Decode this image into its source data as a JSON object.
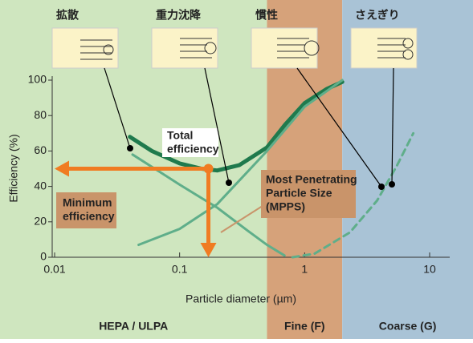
{
  "chart_data": {
    "type": "line",
    "x_label": "Particle diameter (µm)",
    "y_label": "Efficiency (%)",
    "xlim": [
      0.01,
      10
    ],
    "ylim": [
      0,
      100
    ],
    "log_x": true,
    "xticks": [
      0.01,
      0.1,
      1,
      10
    ],
    "yticks": [
      0,
      20,
      40,
      60,
      80,
      100
    ],
    "bands": [
      {
        "label": "HEPA / ULPA",
        "to": 0.5,
        "color": "#cfe6bf"
      },
      {
        "label": "Fine (F)",
        "from": 0.5,
        "to": 2,
        "color": "#d6a27a"
      },
      {
        "label": "Coarse (G)",
        "from": 2,
        "color": "#a9c3d6"
      }
    ],
    "mechanisms": [
      "拡散",
      "重力沈降",
      "慣性",
      "さえぎり"
    ],
    "series": [
      {
        "color": "#1f7a4d",
        "width": 5,
        "dashed": false,
        "x": [
          0.04,
          0.06,
          0.1,
          0.15,
          0.2,
          0.3,
          0.5,
          0.7,
          1,
          1.5,
          2
        ],
        "values": [
          68,
          60,
          53,
          50,
          49,
          52,
          62,
          75,
          87,
          95,
          99
        ]
      },
      {
        "color": "#5fae8a",
        "width": 3,
        "dashed": false,
        "x": [
          0.042,
          0.07,
          0.1,
          0.2,
          0.35,
          0.5,
          0.69
        ],
        "values": [
          58,
          48,
          41,
          28,
          15,
          7,
          1
        ]
      },
      {
        "color": "#5fae8a",
        "width": 3,
        "dashed": false,
        "x": [
          0.047,
          0.1,
          0.2,
          0.5,
          1,
          2
        ],
        "values": [
          7,
          16,
          30,
          60,
          85,
          100
        ]
      },
      {
        "color": "#5fae8a",
        "width": 3,
        "dashed": true,
        "x": [
          0.8,
          1.2,
          2.3,
          3.8,
          5.5,
          7.4
        ],
        "values": [
          0,
          2,
          14,
          32,
          52,
          70
        ]
      }
    ],
    "minimum": {
      "x": 0.17,
      "y": 50
    },
    "total_label": [
      "Total",
      "efficiency"
    ],
    "min_label": [
      "Minimum",
      "efficiency"
    ],
    "mpps_label": [
      "Most Penetrating",
      "Particle Size",
      "(MPPS)"
    ]
  }
}
